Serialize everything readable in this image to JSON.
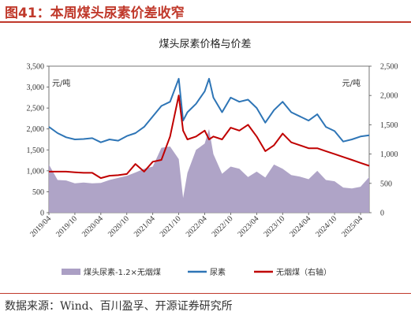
{
  "header": {
    "figure_title": "图41：本周煤头尿素价差收窄",
    "source": "数据来源：Wind、百川盈孚、开源证券研究所"
  },
  "colors": {
    "accent": "#c0392b",
    "spread_fill": "#ab9fc4",
    "urea_line": "#2e75b6",
    "coal_line": "#c00000"
  },
  "chart_data": {
    "type": "line",
    "title": "煤头尿素价格与价差",
    "left_unit": "元/吨",
    "right_unit": "元/吨",
    "ylim_left": [
      0,
      3500
    ],
    "ylim_right": [
      0,
      2500
    ],
    "left_ticks": [
      "0",
      "500",
      "1,000",
      "1,500",
      "2,000",
      "2,500",
      "3,000",
      "3,500"
    ],
    "right_ticks": [
      "0",
      "500",
      "1,000",
      "1,500",
      "2,000",
      "2,500"
    ],
    "x_range": [
      "2019-04",
      "2025-06"
    ],
    "x_ticks": [
      "2019/04",
      "2019/10",
      "2020/04",
      "2020/10",
      "2021/04",
      "2021/10",
      "2022/04",
      "2022/10",
      "2023/04",
      "2023/10",
      "2024/04",
      "2024/10",
      "2025/04"
    ],
    "legend_position": "bottom",
    "series": [
      {
        "name": "煤头尿素-1.2×无烟煤",
        "type": "area",
        "axis": "left",
        "points": [
          [
            "2019-04",
            1150
          ],
          [
            "2019-06",
            780
          ],
          [
            "2019-08",
            770
          ],
          [
            "2019-10",
            700
          ],
          [
            "2019-12",
            720
          ],
          [
            "2020-02",
            700
          ],
          [
            "2020-04",
            710
          ],
          [
            "2020-06",
            780
          ],
          [
            "2020-08",
            830
          ],
          [
            "2020-10",
            880
          ],
          [
            "2020-12",
            960
          ],
          [
            "2021-02",
            1050
          ],
          [
            "2021-04",
            1100
          ],
          [
            "2021-06",
            1550
          ],
          [
            "2021-08",
            1580
          ],
          [
            "2021-10",
            1280
          ],
          [
            "2021-11",
            350
          ],
          [
            "2021-12",
            950
          ],
          [
            "2022-02",
            1500
          ],
          [
            "2022-04",
            1650
          ],
          [
            "2022-05",
            2000
          ],
          [
            "2022-06",
            1400
          ],
          [
            "2022-08",
            930
          ],
          [
            "2022-10",
            1100
          ],
          [
            "2022-12",
            1050
          ],
          [
            "2023-02",
            850
          ],
          [
            "2023-04",
            980
          ],
          [
            "2023-06",
            840
          ],
          [
            "2023-08",
            1150
          ],
          [
            "2023-10",
            1050
          ],
          [
            "2023-12",
            900
          ],
          [
            "2024-02",
            860
          ],
          [
            "2024-04",
            800
          ],
          [
            "2024-06",
            1000
          ],
          [
            "2024-08",
            780
          ],
          [
            "2024-10",
            750
          ],
          [
            "2024-12",
            600
          ],
          [
            "2025-02",
            580
          ],
          [
            "2025-04",
            620
          ],
          [
            "2025-06",
            850
          ]
        ]
      },
      {
        "name": "尿素",
        "type": "line",
        "axis": "left",
        "points": [
          [
            "2019-04",
            2050
          ],
          [
            "2019-06",
            1900
          ],
          [
            "2019-08",
            1800
          ],
          [
            "2019-10",
            1750
          ],
          [
            "2019-12",
            1760
          ],
          [
            "2020-02",
            1780
          ],
          [
            "2020-04",
            1680
          ],
          [
            "2020-06",
            1750
          ],
          [
            "2020-08",
            1720
          ],
          [
            "2020-10",
            1830
          ],
          [
            "2020-12",
            1900
          ],
          [
            "2021-02",
            2050
          ],
          [
            "2021-04",
            2300
          ],
          [
            "2021-06",
            2550
          ],
          [
            "2021-08",
            2650
          ],
          [
            "2021-10",
            3200
          ],
          [
            "2021-11",
            2200
          ],
          [
            "2021-12",
            2400
          ],
          [
            "2022-02",
            2600
          ],
          [
            "2022-04",
            2900
          ],
          [
            "2022-05",
            3200
          ],
          [
            "2022-06",
            2750
          ],
          [
            "2022-08",
            2400
          ],
          [
            "2022-10",
            2750
          ],
          [
            "2022-12",
            2650
          ],
          [
            "2023-02",
            2700
          ],
          [
            "2023-04",
            2500
          ],
          [
            "2023-06",
            2150
          ],
          [
            "2023-08",
            2450
          ],
          [
            "2023-10",
            2650
          ],
          [
            "2023-12",
            2400
          ],
          [
            "2024-02",
            2300
          ],
          [
            "2024-04",
            2200
          ],
          [
            "2024-06",
            2350
          ],
          [
            "2024-08",
            2050
          ],
          [
            "2024-10",
            1950
          ],
          [
            "2024-12",
            1700
          ],
          [
            "2025-02",
            1750
          ],
          [
            "2025-04",
            1820
          ],
          [
            "2025-06",
            1850
          ]
        ]
      },
      {
        "name": "无烟煤（右轴）",
        "type": "line",
        "axis": "right",
        "points": [
          [
            "2019-04",
            700
          ],
          [
            "2019-06",
            700
          ],
          [
            "2019-08",
            700
          ],
          [
            "2019-10",
            690
          ],
          [
            "2019-12",
            680
          ],
          [
            "2020-02",
            680
          ],
          [
            "2020-04",
            590
          ],
          [
            "2020-06",
            630
          ],
          [
            "2020-08",
            640
          ],
          [
            "2020-10",
            660
          ],
          [
            "2020-12",
            830
          ],
          [
            "2021-02",
            700
          ],
          [
            "2021-04",
            870
          ],
          [
            "2021-06",
            900
          ],
          [
            "2021-08",
            1300
          ],
          [
            "2021-10",
            2000
          ],
          [
            "2021-11",
            1400
          ],
          [
            "2021-12",
            1250
          ],
          [
            "2022-02",
            1300
          ],
          [
            "2022-04",
            1400
          ],
          [
            "2022-05",
            1250
          ],
          [
            "2022-06",
            1300
          ],
          [
            "2022-08",
            1250
          ],
          [
            "2022-10",
            1450
          ],
          [
            "2022-12",
            1400
          ],
          [
            "2023-02",
            1500
          ],
          [
            "2023-04",
            1300
          ],
          [
            "2023-06",
            1050
          ],
          [
            "2023-08",
            1150
          ],
          [
            "2023-10",
            1350
          ],
          [
            "2023-12",
            1200
          ],
          [
            "2024-02",
            1150
          ],
          [
            "2024-04",
            1100
          ],
          [
            "2024-06",
            1100
          ],
          [
            "2024-08",
            1050
          ],
          [
            "2024-10",
            1000
          ],
          [
            "2024-12",
            950
          ],
          [
            "2025-02",
            900
          ],
          [
            "2025-04",
            850
          ],
          [
            "2025-06",
            800
          ]
        ]
      }
    ]
  }
}
